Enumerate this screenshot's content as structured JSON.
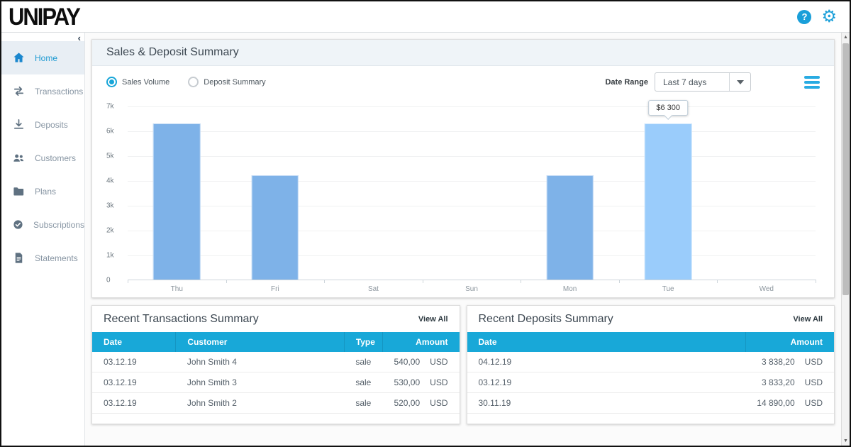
{
  "header": {
    "logo": "UNIPAY",
    "help_label": "?"
  },
  "sidebar": {
    "collapse_label": "‹",
    "items": [
      {
        "label": "Home",
        "icon": "home-icon",
        "active": true
      },
      {
        "label": "Transactions",
        "icon": "transactions-icon",
        "active": false
      },
      {
        "label": "Deposits",
        "icon": "deposits-icon",
        "active": false
      },
      {
        "label": "Customers",
        "icon": "customers-icon",
        "active": false
      },
      {
        "label": "Plans",
        "icon": "plans-icon",
        "active": false
      },
      {
        "label": "Subscriptions",
        "icon": "subscriptions-icon",
        "active": false
      },
      {
        "label": "Statements",
        "icon": "statements-icon",
        "active": false
      }
    ]
  },
  "sales_panel": {
    "title": "Sales & Deposit Summary",
    "radios": [
      {
        "label": "Sales Volume",
        "selected": true
      },
      {
        "label": "Deposit Summary",
        "selected": false
      }
    ],
    "date_range_label": "Date Range",
    "date_range_value": "Last 7 days"
  },
  "chart_data": {
    "type": "bar",
    "title": "Sales Volume",
    "categories": [
      "Thu",
      "Fri",
      "Sat",
      "Sun",
      "Mon",
      "Tue",
      "Wed"
    ],
    "values": [
      6300,
      4200,
      0,
      0,
      4200,
      6300,
      0
    ],
    "ylim": [
      0,
      7000
    ],
    "ytick_step": 1000,
    "ytick_labels": [
      "0",
      "1k",
      "2k",
      "3k",
      "4k",
      "5k",
      "6k",
      "7k"
    ],
    "grid": true,
    "highlighted_index": 5,
    "tooltip_text": "$6 300",
    "bar_color": "#7eb2e8",
    "highlight_color": "#9accfb"
  },
  "transactions": {
    "title": "Recent Transactions Summary",
    "view_all": "View All",
    "columns": [
      "Date",
      "Customer",
      "Type",
      "Amount"
    ],
    "col_widths": [
      "24%",
      "50%",
      "10%",
      "16%"
    ],
    "rows": [
      {
        "date": "03.12.19",
        "customer": "John Smith 4",
        "type": "sale",
        "amount": "540,00",
        "currency": "USD"
      },
      {
        "date": "03.12.19",
        "customer": "John Smith 3",
        "type": "sale",
        "amount": "530,00",
        "currency": "USD"
      },
      {
        "date": "03.12.19",
        "customer": "John Smith 2",
        "type": "sale",
        "amount": "520,00",
        "currency": "USD"
      }
    ]
  },
  "deposits": {
    "title": "Recent Deposits Summary",
    "view_all": "View All",
    "columns": [
      "Date",
      "Amount"
    ],
    "col_widths": [
      "78%",
      "22%"
    ],
    "rows": [
      {
        "date": "04.12.19",
        "amount": "3 838,20",
        "currency": "USD"
      },
      {
        "date": "03.12.19",
        "amount": "3 833,20",
        "currency": "USD"
      },
      {
        "date": "30.11.19",
        "amount": "14 890,00",
        "currency": "USD"
      }
    ]
  },
  "colors": {
    "accent": "#1a9fd9",
    "table_header": "#18a8d8",
    "bar": "#7eb2e8",
    "bar_highlight": "#9accfb",
    "active_item_bg": "#e8eef4"
  }
}
